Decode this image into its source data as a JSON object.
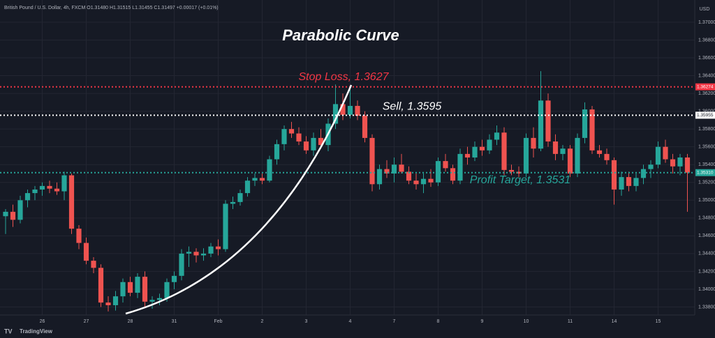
{
  "header": "British Pound / U.S. Dollar, 4h, FXCM  O1.31480 H1.31515 L1.31455 C1.31497 +0.00017 (+0.01%)",
  "brand": "TradingView",
  "chart_data": {
    "type": "candlestick",
    "title": "Parabolic Curve",
    "currency": "USD",
    "up_color": "#26a69a",
    "down_color": "#ef5350",
    "grid": true,
    "ylim": [
      1.3371,
      1.3725
    ],
    "yticks": [
      {
        "value": 1.338,
        "label": "1.33800"
      },
      {
        "value": 1.34,
        "label": "1.34000"
      },
      {
        "value": 1.342,
        "label": "1.34200"
      },
      {
        "value": 1.344,
        "label": "1.34400"
      },
      {
        "value": 1.346,
        "label": "1.34600"
      },
      {
        "value": 1.348,
        "label": "1.34800"
      },
      {
        "value": 1.35,
        "label": "1.35000"
      },
      {
        "value": 1.352,
        "label": "1.35200"
      },
      {
        "value": 1.354,
        "label": "1.35400"
      },
      {
        "value": 1.356,
        "label": "1.35600"
      },
      {
        "value": 1.358,
        "label": "1.35800"
      },
      {
        "value": 1.36,
        "label": "1.36000"
      },
      {
        "value": 1.362,
        "label": "1.36200"
      },
      {
        "value": 1.364,
        "label": "1.36400"
      },
      {
        "value": 1.366,
        "label": "1.36600"
      },
      {
        "value": 1.368,
        "label": "1.36800"
      },
      {
        "value": 1.37,
        "label": "1.37000"
      }
    ],
    "levels": [
      {
        "label": "Stop Loss, 1.3627",
        "value": 1.36274,
        "tag": "1.36274",
        "color": "#f23645"
      },
      {
        "label": "Sell, 1.3595",
        "value": 1.35955,
        "tag": "1.35955",
        "color": "#ffffff"
      },
      {
        "label": "Profit Target, 1.3531",
        "value": 1.3531,
        "tag": "1.35310",
        "color": "#26a69a"
      }
    ],
    "categories": [
      null,
      null,
      null,
      null,
      null,
      "26",
      null,
      null,
      null,
      null,
      null,
      "27",
      null,
      null,
      null,
      null,
      null,
      "28",
      null,
      null,
      null,
      null,
      null,
      "31",
      null,
      null,
      null,
      null,
      null,
      "Feb",
      null,
      null,
      null,
      null,
      null,
      "2",
      null,
      null,
      null,
      null,
      null,
      "3",
      null,
      null,
      null,
      null,
      null,
      "4",
      null,
      null,
      null,
      null,
      null,
      "7",
      null,
      null,
      null,
      null,
      null,
      "8",
      null,
      null,
      null,
      null,
      null,
      "9",
      null,
      null,
      null,
      null,
      null,
      "10",
      null,
      null,
      null,
      null,
      null,
      "11",
      null,
      null,
      null,
      null,
      null,
      "14",
      null,
      null,
      null,
      null,
      null,
      "15",
      null,
      null,
      null,
      null
    ],
    "ohlc": [
      [
        1.3482,
        1.349,
        1.3462,
        1.3487
      ],
      [
        1.3487,
        1.3495,
        1.347,
        1.3478
      ],
      [
        1.3478,
        1.3505,
        1.3474,
        1.35
      ],
      [
        1.35,
        1.3512,
        1.3492,
        1.3508
      ],
      [
        1.3508,
        1.3516,
        1.35,
        1.3512
      ],
      [
        1.3512,
        1.352,
        1.3505,
        1.3516
      ],
      [
        1.3516,
        1.3522,
        1.3508,
        1.3513
      ],
      [
        1.3513,
        1.352,
        1.3506,
        1.351
      ],
      [
        1.351,
        1.3532,
        1.35,
        1.3528
      ],
      [
        1.3528,
        1.353,
        1.3462,
        1.3468
      ],
      [
        1.3468,
        1.3472,
        1.3445,
        1.3452
      ],
      [
        1.3452,
        1.3458,
        1.3428,
        1.3432
      ],
      [
        1.3432,
        1.3436,
        1.3418,
        1.3424
      ],
      [
        1.3424,
        1.3428,
        1.338,
        1.3385
      ],
      [
        1.3385,
        1.3392,
        1.3375,
        1.3382
      ],
      [
        1.3382,
        1.3398,
        1.3376,
        1.3392
      ],
      [
        1.3392,
        1.3412,
        1.3385,
        1.3408
      ],
      [
        1.3408,
        1.3414,
        1.3392,
        1.3396
      ],
      [
        1.3396,
        1.3418,
        1.339,
        1.3414
      ],
      [
        1.3414,
        1.342,
        1.338,
        1.3386
      ],
      [
        1.3386,
        1.3392,
        1.3378,
        1.3388
      ],
      [
        1.3388,
        1.3395,
        1.3382,
        1.339
      ],
      [
        1.339,
        1.3412,
        1.3386,
        1.3408
      ],
      [
        1.3408,
        1.342,
        1.34,
        1.3415
      ],
      [
        1.3415,
        1.3445,
        1.341,
        1.344
      ],
      [
        1.344,
        1.3448,
        1.3425,
        1.3442
      ],
      [
        1.3442,
        1.3446,
        1.343,
        1.3438
      ],
      [
        1.3438,
        1.3446,
        1.3432,
        1.344
      ],
      [
        1.344,
        1.3452,
        1.3436,
        1.3448
      ],
      [
        1.3448,
        1.3456,
        1.3438,
        1.3445
      ],
      [
        1.3445,
        1.35,
        1.3442,
        1.3496
      ],
      [
        1.3496,
        1.3504,
        1.349,
        1.3498
      ],
      [
        1.3498,
        1.3512,
        1.3494,
        1.3508
      ],
      [
        1.3508,
        1.3526,
        1.3504,
        1.3522
      ],
      [
        1.3522,
        1.353,
        1.3516,
        1.3525
      ],
      [
        1.3525,
        1.353,
        1.3518,
        1.3522
      ],
      [
        1.3522,
        1.355,
        1.352,
        1.3546
      ],
      [
        1.3546,
        1.3568,
        1.354,
        1.3563
      ],
      [
        1.3563,
        1.3584,
        1.3556,
        1.358
      ],
      [
        1.358,
        1.3588,
        1.357,
        1.3575
      ],
      [
        1.3575,
        1.3582,
        1.3562,
        1.3566
      ],
      [
        1.3566,
        1.3572,
        1.3552,
        1.3556
      ],
      [
        1.3556,
        1.3576,
        1.355,
        1.357
      ],
      [
        1.357,
        1.358,
        1.3558,
        1.3562
      ],
      [
        1.3562,
        1.3592,
        1.3555,
        1.3586
      ],
      [
        1.3586,
        1.363,
        1.358,
        1.3608
      ],
      [
        1.3608,
        1.362,
        1.359,
        1.3596
      ],
      [
        1.3596,
        1.3625,
        1.3592,
        1.3606
      ],
      [
        1.3606,
        1.3612,
        1.359,
        1.3595
      ],
      [
        1.3595,
        1.36,
        1.3565,
        1.357
      ],
      [
        1.357,
        1.3574,
        1.351,
        1.3518
      ],
      [
        1.3518,
        1.354,
        1.3512,
        1.3535
      ],
      [
        1.3535,
        1.3545,
        1.3525,
        1.353
      ],
      [
        1.353,
        1.3548,
        1.352,
        1.354
      ],
      [
        1.354,
        1.3552,
        1.353,
        1.3532
      ],
      [
        1.3532,
        1.3538,
        1.3518,
        1.3522
      ],
      [
        1.3522,
        1.353,
        1.3512,
        1.3518
      ],
      [
        1.3518,
        1.353,
        1.3508,
        1.3524
      ],
      [
        1.3524,
        1.3535,
        1.3515,
        1.352
      ],
      [
        1.352,
        1.3548,
        1.3516,
        1.3544
      ],
      [
        1.3544,
        1.3552,
        1.3532,
        1.3536
      ],
      [
        1.3536,
        1.354,
        1.3518,
        1.3522
      ],
      [
        1.3522,
        1.3558,
        1.3518,
        1.3552
      ],
      [
        1.3552,
        1.356,
        1.354,
        1.3548
      ],
      [
        1.3548,
        1.3566,
        1.3544,
        1.356
      ],
      [
        1.356,
        1.3568,
        1.355,
        1.3556
      ],
      [
        1.3556,
        1.3574,
        1.3552,
        1.3568
      ],
      [
        1.3568,
        1.3584,
        1.3562,
        1.3576
      ],
      [
        1.3576,
        1.3582,
        1.3528,
        1.3534
      ],
      [
        1.3534,
        1.354,
        1.3528,
        1.3532
      ],
      [
        1.3532,
        1.3538,
        1.3526,
        1.353
      ],
      [
        1.353,
        1.3575,
        1.3526,
        1.357
      ],
      [
        1.357,
        1.3582,
        1.3548,
        1.3558
      ],
      [
        1.3558,
        1.3645,
        1.3555,
        1.3612
      ],
      [
        1.3612,
        1.362,
        1.356,
        1.3566
      ],
      [
        1.3566,
        1.3574,
        1.3545,
        1.3552
      ],
      [
        1.3552,
        1.3562,
        1.3545,
        1.3558
      ],
      [
        1.3558,
        1.3562,
        1.3526,
        1.353
      ],
      [
        1.353,
        1.3575,
        1.3526,
        1.357
      ],
      [
        1.357,
        1.361,
        1.3564,
        1.3602
      ],
      [
        1.3602,
        1.3606,
        1.3552,
        1.3556
      ],
      [
        1.3556,
        1.3562,
        1.3548,
        1.3552
      ],
      [
        1.3552,
        1.3558,
        1.354,
        1.3545
      ],
      [
        1.3545,
        1.3548,
        1.3495,
        1.3512
      ],
      [
        1.3512,
        1.3532,
        1.3505,
        1.3526
      ],
      [
        1.3526,
        1.3532,
        1.351,
        1.3516
      ],
      [
        1.3516,
        1.353,
        1.351,
        1.3525
      ],
      [
        1.3525,
        1.354,
        1.3518,
        1.3535
      ],
      [
        1.3535,
        1.3545,
        1.3525,
        1.354
      ],
      [
        1.354,
        1.3566,
        1.3536,
        1.356
      ],
      [
        1.356,
        1.3568,
        1.3542,
        1.3546
      ],
      [
        1.3546,
        1.3552,
        1.353,
        1.3538
      ],
      [
        1.3538,
        1.3552,
        1.3528,
        1.3548
      ],
      [
        1.3548,
        1.3552,
        1.3487,
        1.3531
      ]
    ]
  }
}
